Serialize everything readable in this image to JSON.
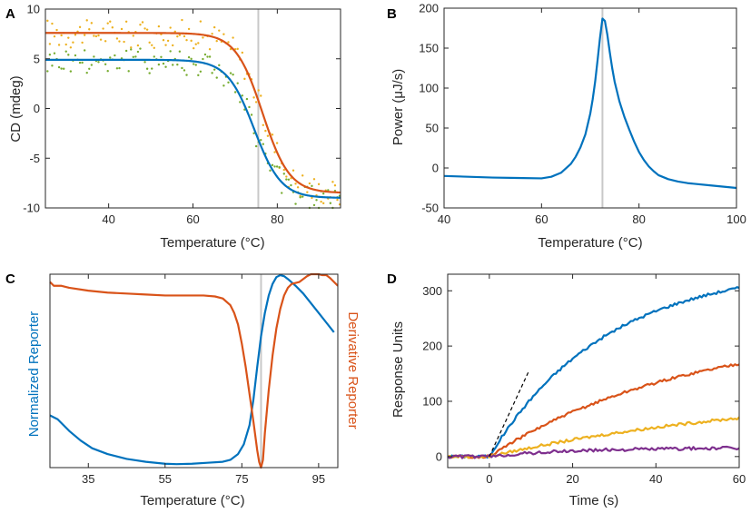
{
  "chart_data": [
    {
      "panel": "A",
      "type": "line",
      "xlabel": "Temperature (°C)",
      "ylabel": "CD (mdeg)",
      "xlim": [
        25,
        95
      ],
      "ylim": [
        -10,
        10
      ],
      "xticks": [
        40,
        60,
        80
      ],
      "yticks": [
        10,
        5,
        0,
        -5,
        -10
      ],
      "vline_x": 75.5,
      "series": [
        {
          "name": "fit-orange",
          "color": "#d95319",
          "kind": "sigmoid",
          "upper": 7.6,
          "lower": -8.5,
          "tm": 76.5,
          "width": 3.2
        },
        {
          "name": "fit-blue",
          "color": "#0072bd",
          "kind": "sigmoid",
          "upper": 4.9,
          "lower": -9.0,
          "tm": 74.5,
          "width": 3.2
        },
        {
          "name": "data-orange",
          "color": "#edb120",
          "kind": "scatter",
          "upper": 7.6,
          "lower": -8.5,
          "tm": 76.5,
          "width": 3.2,
          "noise": 0.9
        },
        {
          "name": "data-green",
          "color": "#77ac30",
          "kind": "scatter",
          "upper": 4.9,
          "lower": -9.0,
          "tm": 74.5,
          "width": 3.2,
          "noise": 0.9
        }
      ]
    },
    {
      "panel": "B",
      "type": "line",
      "xlabel": "Temperature (°C)",
      "ylabel": "Power (μJ/s)",
      "xlim": [
        40,
        100
      ],
      "ylim": [
        -50,
        200
      ],
      "xticks": [
        40,
        60,
        80,
        100
      ],
      "yticks": [
        200,
        150,
        100,
        50,
        0,
        -50
      ],
      "vline_x": 72.5,
      "series": [
        {
          "name": "power",
          "color": "#0072bd",
          "x": [
            40,
            45,
            50,
            55,
            60,
            62,
            64,
            66,
            67,
            68,
            69,
            70,
            70.5,
            71,
            71.5,
            72,
            72.5,
            73,
            73.5,
            74,
            74.5,
            75,
            76,
            77,
            78,
            79,
            80,
            81,
            82,
            83,
            84,
            86,
            88,
            90,
            95,
            100
          ],
          "y": [
            -10,
            -11,
            -12,
            -12.5,
            -13,
            -11,
            -6,
            5,
            14,
            26,
            42,
            68,
            86,
            108,
            135,
            163,
            187,
            184,
            167,
            145,
            125,
            108,
            83,
            64,
            48,
            33,
            20,
            10,
            2,
            -4,
            -9,
            -14,
            -17,
            -19,
            -22,
            -25
          ]
        }
      ]
    },
    {
      "panel": "C",
      "type": "line",
      "xlabel": "Temperature (°C)",
      "ylabel": "Normalized Reporter",
      "ylabel_right": "Derivative Reporter",
      "xlim": [
        25,
        100
      ],
      "ylim": [
        0,
        1
      ],
      "xticks": [
        35,
        55,
        75,
        95
      ],
      "vline_x": 80,
      "series": [
        {
          "name": "normalized",
          "color": "#0072bd",
          "x": [
            25,
            27,
            30,
            33,
            36,
            40,
            45,
            50,
            55,
            58,
            62,
            66,
            70,
            72,
            74,
            75.5,
            77,
            78,
            79,
            80,
            81,
            82,
            83,
            84,
            85,
            86,
            87,
            89,
            91,
            93,
            95,
            97,
            99
          ],
          "y": [
            0.27,
            0.25,
            0.19,
            0.14,
            0.1,
            0.07,
            0.045,
            0.03,
            0.02,
            0.018,
            0.02,
            0.025,
            0.03,
            0.04,
            0.07,
            0.12,
            0.22,
            0.35,
            0.52,
            0.68,
            0.8,
            0.89,
            0.95,
            0.985,
            0.995,
            0.99,
            0.975,
            0.94,
            0.9,
            0.85,
            0.8,
            0.75,
            0.7
          ]
        },
        {
          "name": "derivative",
          "color": "#d95319",
          "x": [
            25,
            26,
            28,
            30,
            35,
            40,
            45,
            50,
            55,
            60,
            65,
            68,
            70,
            72,
            73,
            74,
            75,
            76,
            77,
            78,
            79,
            79.5,
            80,
            80.5,
            81,
            82,
            83,
            84,
            85,
            86,
            87,
            88,
            90,
            92,
            93,
            94,
            95,
            96,
            97,
            98,
            99,
            100
          ],
          "y": [
            0.96,
            0.94,
            0.94,
            0.93,
            0.915,
            0.905,
            0.9,
            0.895,
            0.89,
            0.89,
            0.89,
            0.885,
            0.875,
            0.84,
            0.8,
            0.74,
            0.64,
            0.52,
            0.38,
            0.24,
            0.09,
            0.03,
            0.0,
            0.04,
            0.18,
            0.4,
            0.58,
            0.72,
            0.82,
            0.89,
            0.93,
            0.95,
            0.96,
            0.99,
            1.0,
            1.0,
            1.0,
            0.995,
            0.995,
            0.98,
            0.96,
            0.94
          ]
        }
      ]
    },
    {
      "panel": "D",
      "type": "line",
      "xlabel": "Time (s)",
      "ylabel": "Response Units",
      "xlim": [
        -10,
        60
      ],
      "ylim": [
        -20,
        330
      ],
      "xticks": [
        0,
        20,
        40,
        60
      ],
      "yticks": [
        300,
        200,
        100,
        0
      ],
      "tangent_line": {
        "x": [
          0,
          9.5
        ],
        "y": [
          0,
          155
        ]
      },
      "series": [
        {
          "name": "blue",
          "color": "#0072bd",
          "rmax": 345,
          "k": 0.036
        },
        {
          "name": "orange",
          "color": "#d95319",
          "rmax": 235,
          "k": 0.021
        },
        {
          "name": "yellow",
          "color": "#edb120",
          "rmax": 120,
          "k": 0.0145
        },
        {
          "name": "purple",
          "color": "#7e2f8e",
          "rmax": 16,
          "k": 0.05
        }
      ]
    }
  ]
}
